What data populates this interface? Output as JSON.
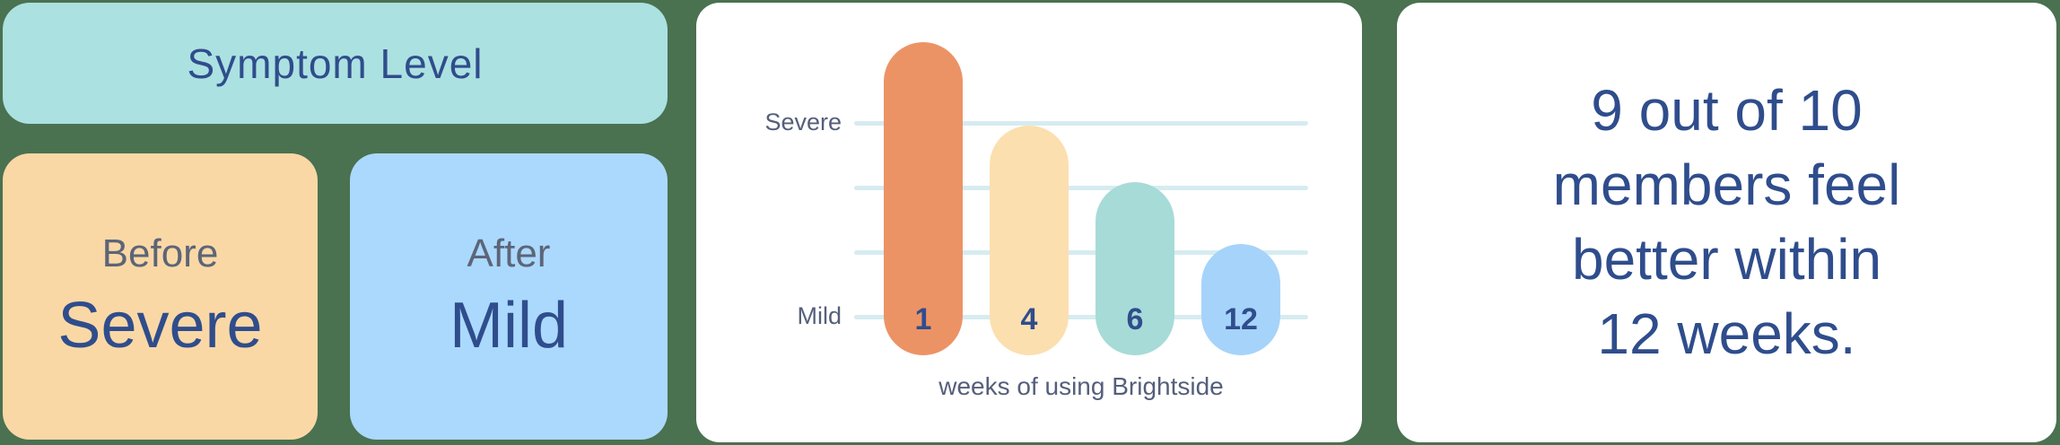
{
  "background_color": "#4A7150",
  "card_color": "#FFFFFF",
  "accent_text_color": "#2F4D8C",
  "muted_text_color": "#5C6577",
  "axis_text_color": "#555F7B",
  "left_panel": {
    "title": "Symptom Level",
    "title_bg": "#ACE1E1",
    "before_label": "Before",
    "before_value": "Severe",
    "before_bg": "#FAD8A6",
    "after_label": "After",
    "after_value": "Mild",
    "after_bg": "#ABD9FD"
  },
  "chart_data": {
    "type": "bar",
    "title": "",
    "categories": [
      "1",
      "4",
      "6",
      "12"
    ],
    "values": [
      4.25,
      2.96,
      2.08,
      1.13
    ],
    "bar_colors": [
      "#EC9366",
      "#FBDFAF",
      "#A7DBD8",
      "#A6D3FA"
    ],
    "xlabel": "weeks of using Brightside",
    "ylabel": "",
    "yticks": [
      {
        "label": "Severe",
        "value": 3
      },
      {
        "label": "Mild",
        "value": 0
      }
    ],
    "gridline_values": [
      0,
      1,
      2,
      3
    ],
    "gridline_color": "#D6ECF0",
    "bar_bottom_value": -0.6,
    "grid": true,
    "legend": false
  },
  "right_card": {
    "lines": [
      "9 out of 10",
      "members feel",
      "better within",
      "12 weeks."
    ]
  }
}
